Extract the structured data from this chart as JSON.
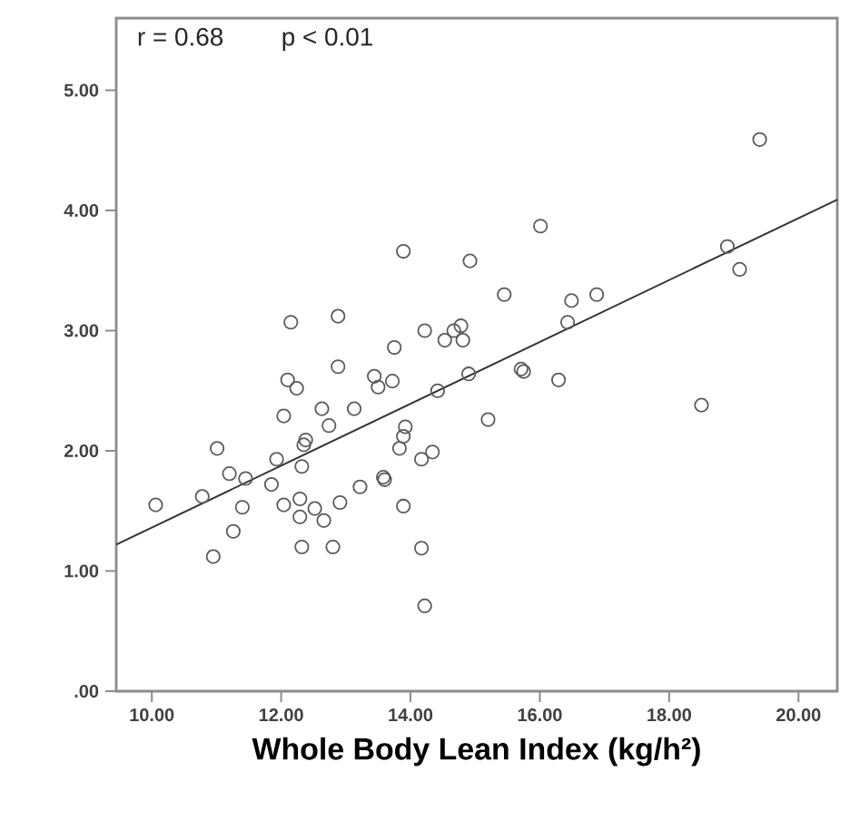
{
  "chart_data": {
    "type": "scatter",
    "xlabel": "Whole Body Lean Index (kg/h²)",
    "annotations": [
      "r = 0.68",
      "p < 0.01"
    ],
    "xlim": [
      9.45,
      20.6
    ],
    "ylim": [
      0,
      5.6
    ],
    "xticks": [
      {
        "value": 10,
        "label": "10.00"
      },
      {
        "value": 12,
        "label": "12.00"
      },
      {
        "value": 14,
        "label": "14.00"
      },
      {
        "value": 16,
        "label": "16.00"
      },
      {
        "value": 18,
        "label": "18.00"
      },
      {
        "value": 20,
        "label": "20.00"
      }
    ],
    "yticks": [
      {
        "value": 0,
        "label": ".00"
      },
      {
        "value": 1,
        "label": "1.00"
      },
      {
        "value": 2,
        "label": "2.00"
      },
      {
        "value": 3,
        "label": "3.00"
      },
      {
        "value": 4,
        "label": "4.00"
      },
      {
        "value": 5,
        "label": "5.00"
      }
    ],
    "grid": false,
    "marker": "circle",
    "series": [
      {
        "color": "#5a5a5a",
        "x": [
          10.06,
          10.78,
          11.01,
          10.95,
          11.26,
          11.2,
          11.45,
          11.4,
          11.85,
          11.93,
          12.04,
          12.29,
          12.32,
          12.52,
          12.66,
          12.8,
          12.91,
          12.29,
          12.32,
          12.35,
          12.38,
          12.04,
          12.1,
          12.24,
          12.15,
          12.88,
          12.88,
          12.63,
          12.74,
          13.13,
          13.22,
          13.58,
          13.6,
          13.89,
          14.17,
          14.22,
          13.89,
          14.92,
          15.45,
          16.01,
          13.75,
          14.22,
          14.53,
          14.67,
          14.78,
          14.81,
          13.44,
          13.5,
          13.72,
          14.42,
          14.9,
          15.71,
          15.75,
          16.29,
          15.2,
          13.92,
          13.89,
          13.83,
          14.17,
          14.34,
          16.49,
          16.43,
          16.88,
          18.9,
          19.09,
          19.4,
          18.5
        ],
        "values": [
          1.55,
          1.62,
          2.02,
          1.12,
          1.33,
          1.81,
          1.77,
          1.53,
          1.72,
          1.93,
          1.55,
          1.45,
          1.2,
          1.52,
          1.42,
          1.2,
          1.57,
          1.6,
          1.87,
          2.05,
          2.09,
          2.29,
          2.59,
          2.52,
          3.07,
          3.12,
          2.7,
          2.35,
          2.21,
          2.35,
          1.7,
          1.78,
          1.76,
          1.54,
          1.19,
          0.71,
          3.66,
          3.58,
          3.3,
          3.87,
          2.86,
          3.0,
          2.92,
          3.0,
          3.04,
          2.92,
          2.62,
          2.53,
          2.58,
          2.5,
          2.64,
          2.68,
          2.66,
          2.59,
          2.26,
          2.2,
          2.12,
          2.02,
          1.93,
          1.99,
          3.25,
          3.07,
          3.3,
          3.7,
          3.51,
          4.59,
          2.38
        ]
      },
      {
        "type": "line",
        "color": "#333333",
        "marker": "none",
        "x": [
          9.45,
          20.6
        ],
        "values": [
          1.22,
          4.09
        ]
      }
    ]
  }
}
